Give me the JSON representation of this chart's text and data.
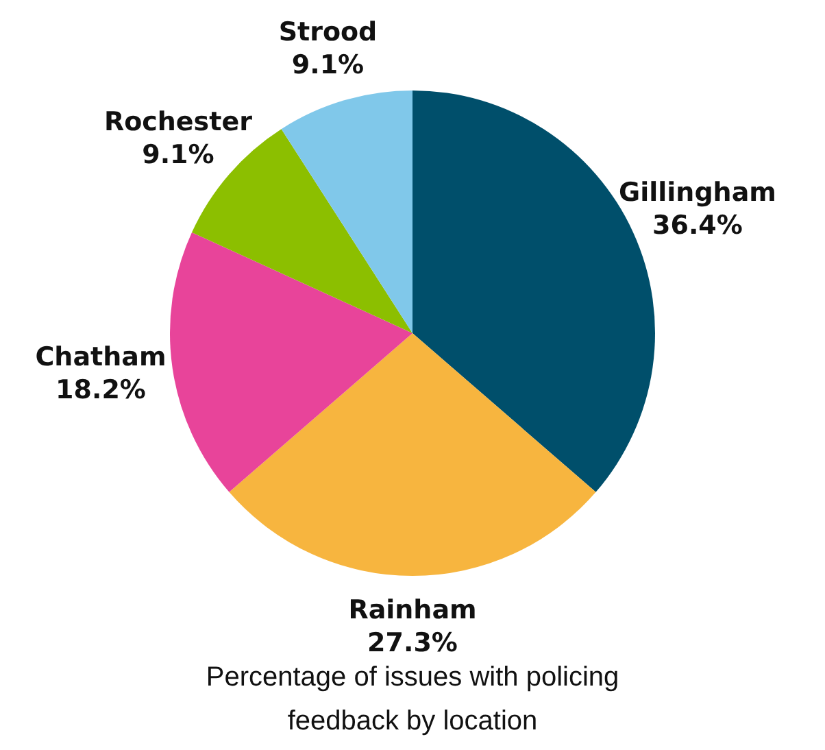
{
  "chart_data": {
    "type": "pie",
    "title": "Percentage of issues with policing feedback by location",
    "categories": [
      "Gillingham",
      "Rainham",
      "Chatham",
      "Rochester",
      "Strood"
    ],
    "values": [
      36.4,
      27.3,
      18.2,
      9.1,
      9.1
    ],
    "value_labels": [
      "36.4%",
      "27.3%",
      "18.2%",
      "9.1%",
      "9.1%"
    ],
    "colors": [
      "#004f6b",
      "#f7b53f",
      "#e8449a",
      "#8cbf00",
      "#80c8ea"
    ],
    "legend": false
  }
}
